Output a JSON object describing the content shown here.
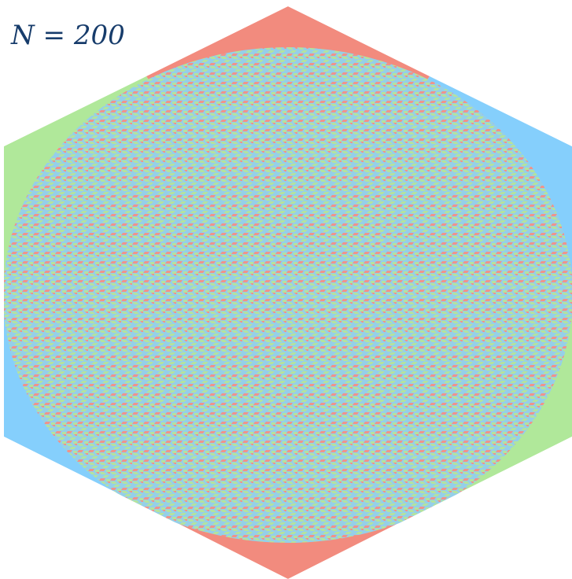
{
  "annotation": "N = 200"
}
